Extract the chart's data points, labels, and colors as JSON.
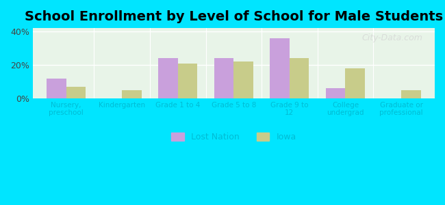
{
  "title": "School Enrollment by Level of School for Male Students",
  "categories": [
    "Nursery,\npreschool",
    "Kindergarten",
    "Grade 1 to 4",
    "Grade 5 to 8",
    "Grade 9 to\n12",
    "College\nundergrad",
    "Graduate or\nprofessional"
  ],
  "lost_nation": [
    12,
    0,
    24,
    24,
    36,
    6,
    0
  ],
  "iowa": [
    7,
    5,
    21,
    22,
    24,
    18,
    5
  ],
  "lost_nation_color": "#c9a0dc",
  "iowa_color": "#c8cc8a",
  "background_outer": "#00e5ff",
  "background_inner_top": "#e8f5e9",
  "background_inner_bottom": "#f0f8e8",
  "bar_width": 0.35,
  "ylim": [
    0,
    42
  ],
  "yticks": [
    0,
    20,
    40
  ],
  "ytick_labels": [
    "0%",
    "20%",
    "40%"
  ],
  "title_fontsize": 14,
  "legend_labels": [
    "Lost Nation",
    "Iowa"
  ],
  "watermark": "City-Data.com"
}
